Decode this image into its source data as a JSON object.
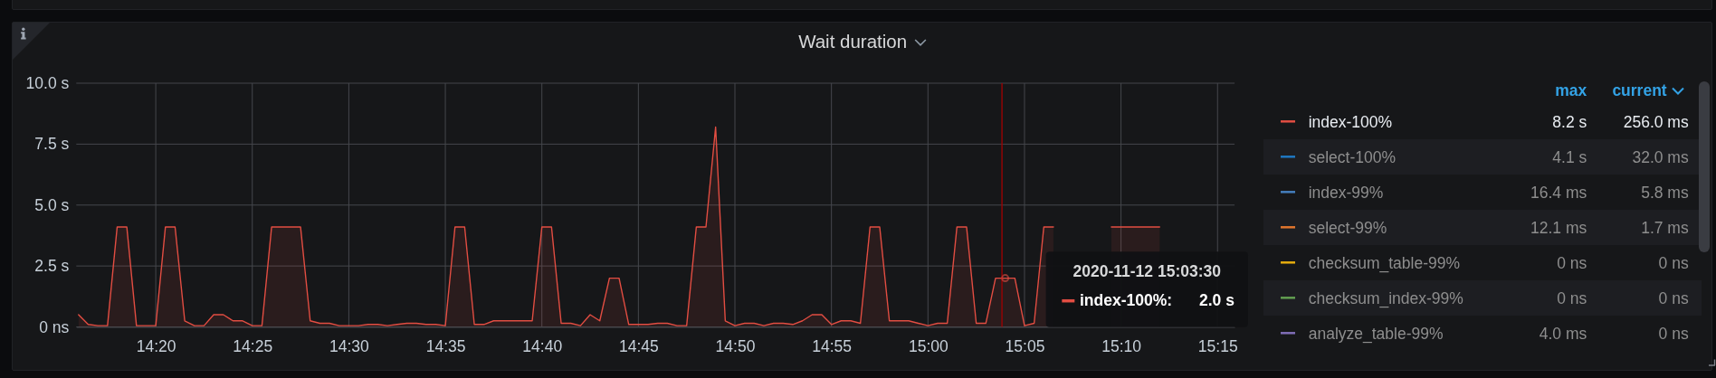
{
  "chart_data": [
    {
      "type": "area",
      "title": "Wait duration",
      "x": [
        "2020-11-12T14:16:00",
        "2020-11-12T14:16:30",
        "2020-11-12T14:17:00",
        "2020-11-12T14:17:30",
        "2020-11-12T14:18:00",
        "2020-11-12T14:18:30",
        "2020-11-12T14:19:00",
        "2020-11-12T14:19:30",
        "2020-11-12T14:20:00",
        "2020-11-12T14:20:30",
        "2020-11-12T14:21:00",
        "2020-11-12T14:21:30",
        "2020-11-12T14:22:00",
        "2020-11-12T14:22:30",
        "2020-11-12T14:23:00",
        "2020-11-12T14:23:30",
        "2020-11-12T14:24:00",
        "2020-11-12T14:24:30",
        "2020-11-12T14:25:00",
        "2020-11-12T14:25:30",
        "2020-11-12T14:26:00",
        "2020-11-12T14:26:30",
        "2020-11-12T14:27:00",
        "2020-11-12T14:27:30",
        "2020-11-12T14:28:00",
        "2020-11-12T14:28:30",
        "2020-11-12T14:29:00",
        "2020-11-12T14:29:30",
        "2020-11-12T14:30:00",
        "2020-11-12T14:30:30",
        "2020-11-12T14:31:00",
        "2020-11-12T14:31:30",
        "2020-11-12T14:32:00",
        "2020-11-12T14:32:30",
        "2020-11-12T14:33:00",
        "2020-11-12T14:33:30",
        "2020-11-12T14:34:00",
        "2020-11-12T14:34:30",
        "2020-11-12T14:35:00",
        "2020-11-12T14:35:30",
        "2020-11-12T14:36:00",
        "2020-11-12T14:36:30",
        "2020-11-12T14:37:00",
        "2020-11-12T14:37:30",
        "2020-11-12T14:38:00",
        "2020-11-12T14:38:30",
        "2020-11-12T14:39:00",
        "2020-11-12T14:39:30",
        "2020-11-12T14:40:00",
        "2020-11-12T14:40:30",
        "2020-11-12T14:41:00",
        "2020-11-12T14:41:30",
        "2020-11-12T14:42:00",
        "2020-11-12T14:42:30",
        "2020-11-12T14:43:00",
        "2020-11-12T14:43:30",
        "2020-11-12T14:44:00",
        "2020-11-12T14:44:30",
        "2020-11-12T14:45:00",
        "2020-11-12T14:45:30",
        "2020-11-12T14:46:00",
        "2020-11-12T14:46:30",
        "2020-11-12T14:47:00",
        "2020-11-12T14:47:30",
        "2020-11-12T14:48:00",
        "2020-11-12T14:48:30",
        "2020-11-12T14:49:00",
        "2020-11-12T14:49:30",
        "2020-11-12T14:50:00",
        "2020-11-12T14:50:30",
        "2020-11-12T14:51:00",
        "2020-11-12T14:51:30",
        "2020-11-12T14:52:00",
        "2020-11-12T14:52:30",
        "2020-11-12T14:53:00",
        "2020-11-12T14:53:30",
        "2020-11-12T14:54:00",
        "2020-11-12T14:54:30",
        "2020-11-12T14:55:00",
        "2020-11-12T14:55:30",
        "2020-11-12T14:56:00",
        "2020-11-12T14:56:30",
        "2020-11-12T14:57:00",
        "2020-11-12T14:57:30",
        "2020-11-12T14:58:00",
        "2020-11-12T14:58:30",
        "2020-11-12T14:59:00",
        "2020-11-12T14:59:30",
        "2020-11-12T15:00:00",
        "2020-11-12T15:00:30",
        "2020-11-12T15:01:00",
        "2020-11-12T15:01:30",
        "2020-11-12T15:02:00",
        "2020-11-12T15:02:30",
        "2020-11-12T15:03:00",
        "2020-11-12T15:03:30",
        "2020-11-12T15:04:00",
        "2020-11-12T15:04:30",
        "2020-11-12T15:05:00",
        "2020-11-12T15:05:30",
        "2020-11-12T15:06:00",
        "2020-11-12T15:06:30",
        "2020-11-12T15:07:00",
        "2020-11-12T15:07:30",
        "2020-11-12T15:08:00",
        "2020-11-12T15:08:30",
        "2020-11-12T15:09:00",
        "2020-11-12T15:09:30",
        "2020-11-12T15:10:00",
        "2020-11-12T15:10:30",
        "2020-11-12T15:11:00",
        "2020-11-12T15:11:30",
        "2020-11-12T15:12:00"
      ],
      "xlim": [
        "2020-11-12T14:15:53",
        "2020-11-12T15:15:53"
      ],
      "xticks": [
        {
          "value": "2020-11-12T14:20",
          "label": "14:20"
        },
        {
          "value": "2020-11-12T14:25",
          "label": "14:25"
        },
        {
          "value": "2020-11-12T14:30",
          "label": "14:30"
        },
        {
          "value": "2020-11-12T14:35",
          "label": "14:35"
        },
        {
          "value": "2020-11-12T14:40",
          "label": "14:40"
        },
        {
          "value": "2020-11-12T14:45",
          "label": "14:45"
        },
        {
          "value": "2020-11-12T14:50",
          "label": "14:50"
        },
        {
          "value": "2020-11-12T14:55",
          "label": "14:55"
        },
        {
          "value": "2020-11-12T15:00",
          "label": "15:00"
        },
        {
          "value": "2020-11-12T15:05",
          "label": "15:05"
        },
        {
          "value": "2020-11-12T15:10",
          "label": "15:10"
        },
        {
          "value": "2020-11-12T15:15",
          "label": "15:15"
        }
      ],
      "ylim": [
        0,
        10
      ],
      "yticks": [
        {
          "value": 0,
          "label": "0 ns"
        },
        {
          "value": 2.5,
          "label": "2.5 s"
        },
        {
          "value": 5,
          "label": "5.0 s"
        },
        {
          "value": 7.5,
          "label": "7.5 s"
        },
        {
          "value": 10,
          "label": "10.0 s"
        }
      ],
      "grid": true,
      "legend": "right",
      "series": [
        {
          "name": "index-100%",
          "color": "#e24d42",
          "values": [
            0.5,
            0.1,
            0.05,
            0.05,
            4.1,
            4.1,
            0.05,
            0.05,
            0.05,
            4.1,
            4.1,
            0.25,
            0.05,
            0.05,
            0.5,
            0.5,
            0.25,
            0.25,
            0.05,
            0.05,
            4.1,
            4.1,
            4.1,
            4.1,
            0.25,
            0.15,
            0.15,
            0.05,
            0.05,
            0.05,
            0.1,
            0.1,
            0.05,
            0.1,
            0.15,
            0.15,
            0.1,
            0.1,
            0.05,
            4.1,
            4.1,
            0.1,
            0.1,
            0.25,
            0.25,
            0.25,
            0.25,
            0.25,
            4.1,
            4.1,
            0.15,
            0.15,
            0.05,
            0.5,
            0.25,
            2.0,
            2.0,
            0.1,
            0.1,
            0.1,
            0.15,
            0.15,
            0.05,
            0.05,
            4.1,
            4.1,
            8.2,
            0.25,
            0.05,
            0.15,
            0.15,
            0.05,
            0.15,
            0.15,
            0.1,
            0.25,
            0.5,
            0.5,
            0.1,
            0.25,
            0.25,
            0.15,
            4.1,
            4.1,
            0.25,
            0.25,
            0.25,
            0.15,
            0.05,
            0.15,
            0.15,
            4.1,
            4.1,
            0.15,
            0.15,
            2.0,
            2.0,
            2.0,
            0.05,
            0.15,
            4.1,
            4.1,
            null,
            null,
            null,
            null,
            null,
            4.1,
            4.1,
            4.1,
            4.1,
            4.1,
            4.1
          ]
        },
        {
          "name": "select-100%",
          "color": "#1f78c1",
          "values": [
            null,
            null,
            null,
            null,
            null,
            null,
            null,
            null,
            null,
            null,
            null,
            null,
            null,
            null,
            null,
            null,
            null,
            null,
            null,
            null,
            null,
            null,
            null,
            null,
            null,
            null,
            null,
            null,
            null,
            null,
            null,
            null,
            null,
            null,
            null,
            null,
            null,
            null,
            null,
            null,
            null,
            null,
            null,
            null,
            null,
            null,
            null,
            null,
            null,
            null,
            null,
            null,
            null,
            null,
            null,
            null,
            null,
            null,
            null,
            null,
            null,
            null,
            null,
            null,
            null,
            null,
            null,
            null,
            null,
            null,
            null,
            null,
            null,
            null,
            null,
            null,
            null,
            null,
            null,
            null,
            null,
            null,
            null,
            null,
            null,
            null,
            null,
            null,
            null,
            null,
            null,
            null,
            null,
            null,
            null,
            null,
            null,
            null,
            null,
            null,
            null,
            null,
            null,
            null,
            null,
            null,
            null,
            null,
            null,
            null,
            null,
            null,
            null
          ]
        },
        {
          "name": "index-99%",
          "color": "#447ebc",
          "values": [
            null,
            null,
            null,
            null,
            null,
            null,
            null,
            null,
            null,
            null,
            null,
            null,
            null,
            null,
            null,
            null,
            null,
            null,
            null,
            null,
            null,
            null,
            null,
            null,
            null,
            null,
            null,
            null,
            null,
            null,
            null,
            null,
            null,
            null,
            null,
            null,
            null,
            null,
            null,
            null,
            null,
            null,
            null,
            null,
            null,
            null,
            null,
            null,
            null,
            null,
            null,
            null,
            null,
            null,
            null,
            null,
            null,
            null,
            null,
            null,
            null,
            null,
            null,
            null,
            null,
            null,
            null,
            null,
            null,
            null,
            null,
            null,
            null,
            null,
            null,
            null,
            null,
            null,
            null,
            null,
            null,
            null,
            null,
            null,
            null,
            null,
            null,
            null,
            null,
            null,
            null,
            null,
            null,
            null,
            null,
            null,
            null,
            null,
            null,
            null,
            null,
            null,
            null,
            null,
            null,
            null,
            null,
            null,
            null,
            null,
            null,
            null,
            null
          ]
        },
        {
          "name": "select-99%",
          "color": "#e0752d",
          "values": [
            null,
            null,
            null,
            null,
            null,
            null,
            null,
            null,
            null,
            null,
            null,
            null,
            null,
            null,
            null,
            null,
            null,
            null,
            null,
            null,
            null,
            null,
            null,
            null,
            null,
            null,
            null,
            null,
            null,
            null,
            null,
            null,
            null,
            null,
            null,
            null,
            null,
            null,
            null,
            null,
            null,
            null,
            null,
            null,
            null,
            null,
            null,
            null,
            null,
            null,
            null,
            null,
            null,
            null,
            null,
            null,
            null,
            null,
            null,
            null,
            null,
            null,
            null,
            null,
            null,
            null,
            null,
            null,
            null,
            null,
            null,
            null,
            null,
            null,
            null,
            null,
            null,
            null,
            null,
            null,
            null,
            null,
            null,
            null,
            null,
            null,
            null,
            null,
            null,
            null,
            null,
            null,
            null,
            null,
            null,
            null,
            null,
            null,
            null,
            null,
            null,
            null,
            null,
            null,
            null,
            null,
            null,
            null,
            null,
            null,
            null,
            null,
            null
          ]
        },
        {
          "name": "checksum_table-99%",
          "color": "#e5ac0e",
          "values": [
            null,
            null,
            null,
            null,
            null,
            null,
            null,
            null,
            null,
            null,
            null,
            null,
            null,
            null,
            null,
            null,
            null,
            null,
            null,
            null,
            null,
            null,
            null,
            null,
            null,
            null,
            null,
            null,
            null,
            null,
            null,
            null,
            null,
            null,
            null,
            null,
            null,
            null,
            null,
            null,
            null,
            null,
            null,
            null,
            null,
            null,
            null,
            null,
            null,
            null,
            null,
            null,
            null,
            null,
            null,
            null,
            null,
            null,
            null,
            null,
            null,
            null,
            null,
            null,
            null,
            null,
            null,
            null,
            null,
            null,
            null,
            null,
            null,
            null,
            null,
            null,
            null,
            null,
            null,
            null,
            null,
            null,
            null,
            null,
            null,
            null,
            null,
            null,
            null,
            null,
            null,
            null,
            null,
            null,
            null,
            null,
            null,
            null,
            null,
            null,
            null,
            null,
            null,
            null,
            null,
            null,
            null,
            null,
            null,
            null,
            null,
            null,
            null
          ]
        },
        {
          "name": "checksum_index-99%",
          "color": "#629e51",
          "values": [
            null,
            null,
            null,
            null,
            null,
            null,
            null,
            null,
            null,
            null,
            null,
            null,
            null,
            null,
            null,
            null,
            null,
            null,
            null,
            null,
            null,
            null,
            null,
            null,
            null,
            null,
            null,
            null,
            null,
            null,
            null,
            null,
            null,
            null,
            null,
            null,
            null,
            null,
            null,
            null,
            null,
            null,
            null,
            null,
            null,
            null,
            null,
            null,
            null,
            null,
            null,
            null,
            null,
            null,
            null,
            null,
            null,
            null,
            null,
            null,
            null,
            null,
            null,
            null,
            null,
            null,
            null,
            null,
            null,
            null,
            null,
            null,
            null,
            null,
            null,
            null,
            null,
            null,
            null,
            null,
            null,
            null,
            null,
            null,
            null,
            null,
            null,
            null,
            null,
            null,
            null,
            null,
            null,
            null,
            null,
            null,
            null,
            null,
            null,
            null,
            null,
            null,
            null,
            null,
            null,
            null,
            null,
            null,
            null,
            null,
            null,
            null,
            null
          ]
        },
        {
          "name": "analyze_table-99%",
          "color": "#806eb7",
          "values": [
            null,
            null,
            null,
            null,
            null,
            null,
            null,
            null,
            null,
            null,
            null,
            null,
            null,
            null,
            null,
            null,
            null,
            null,
            null,
            null,
            null,
            null,
            null,
            null,
            null,
            null,
            null,
            null,
            null,
            null,
            null,
            null,
            null,
            null,
            null,
            null,
            null,
            null,
            null,
            null,
            null,
            null,
            null,
            null,
            null,
            null,
            null,
            null,
            null,
            null,
            null,
            null,
            null,
            null,
            null,
            null,
            null,
            null,
            null,
            null,
            null,
            null,
            null,
            null,
            null,
            null,
            null,
            null,
            null,
            null,
            null,
            null,
            null,
            null,
            null,
            null,
            null,
            null,
            null,
            null,
            null,
            null,
            null,
            null,
            null,
            null,
            null,
            null,
            null,
            null,
            null,
            null,
            null,
            null,
            null,
            null,
            null,
            null,
            null,
            null,
            null,
            null,
            null,
            null,
            null,
            null,
            null,
            null,
            null,
            null,
            null,
            null,
            null
          ]
        }
      ],
      "ref_lines": [
        {
          "axis": "x",
          "value": "2020-11-12T15:03:50",
          "color": "#a30000"
        }
      ],
      "annotations": [
        "2020-11-12 15:03:30",
        "index-100%:",
        "2.0 s"
      ]
    },
    {
      "type": "other",
      "categories": [
        "max",
        "current"
      ],
      "cell_labels": [
        [
          "8.2 s",
          "256.0 ms"
        ],
        [
          "4.1 s",
          "32.0 ms"
        ],
        [
          "16.4 ms",
          "5.8 ms"
        ],
        [
          "12.1 ms",
          "1.7 ms"
        ],
        [
          "0 ns",
          "0 ns"
        ],
        [
          "0 ns",
          "0 ns"
        ],
        [
          "4.0 ms",
          "0 ns"
        ]
      ]
    }
  ]
}
